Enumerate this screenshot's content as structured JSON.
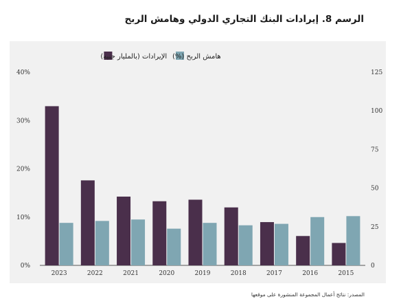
{
  "title": "الرسم 8. إيرادات البنك التجاري الدولي وهامش الربح",
  "source": "المصدر: نتائج أعمال المجموعة المنشورة على موقعها",
  "colors": {
    "revenue": "#4a2f4b",
    "margin": "#7fa6b2",
    "panel_background": "#f1f1f1",
    "axis": "#555555"
  },
  "chart_data": {
    "type": "bar",
    "categories": [
      "2023",
      "2022",
      "2021",
      "2020",
      "2019",
      "2018",
      "2017",
      "2016",
      "2015"
    ],
    "series": [
      {
        "name": "الإيرادات (بالمليار جنيه)",
        "axis": "right",
        "color": "#4a2f4b",
        "values": [
          103,
          55,
          44.5,
          41.5,
          42.5,
          37.5,
          28,
          19,
          14.5
        ]
      },
      {
        "name": "هامش الربح (%)",
        "axis": "left",
        "color": "#7fa6b2",
        "values": [
          8.8,
          9.2,
          9.5,
          7.6,
          8.8,
          8.3,
          8.6,
          10,
          10.2
        ]
      }
    ],
    "y_left": {
      "ylim": [
        0,
        40
      ],
      "ticks": [
        0,
        10,
        20,
        30,
        40
      ],
      "tick_labels": [
        "0%",
        "10%",
        "20%",
        "30%",
        "40%"
      ]
    },
    "y_right": {
      "ylim": [
        0,
        125
      ],
      "ticks": [
        0,
        25,
        50,
        75,
        100,
        125
      ],
      "tick_labels": [
        "0",
        "25",
        "50",
        "75",
        "100",
        "125"
      ]
    },
    "grid": false,
    "legend": {
      "placement": "top-left",
      "items": [
        {
          "label": "هامش الربح (%)",
          "color": "#7fa6b2"
        },
        {
          "label": "الإيرادات (بالمليار جنيه)",
          "color": "#4a2f4b"
        }
      ]
    }
  }
}
